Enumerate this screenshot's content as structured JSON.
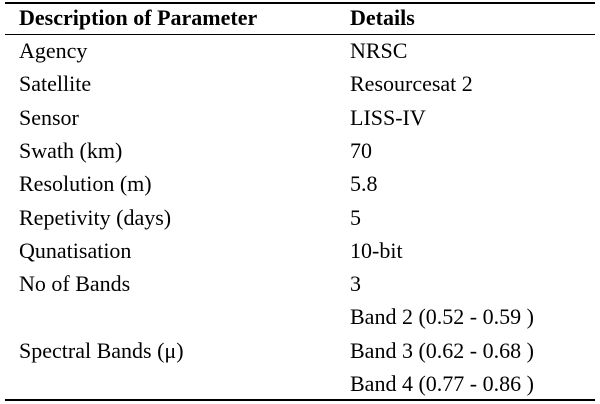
{
  "table": {
    "header": [
      "Description of Parameter",
      "Details"
    ],
    "rows": [
      [
        "Agency",
        "NRSC"
      ],
      [
        "Satellite",
        "Resourcesat 2"
      ],
      [
        "Sensor",
        "LISS-IV"
      ],
      [
        "Swath (km)",
        "70"
      ],
      [
        "Resolution (m)",
        "5.8"
      ],
      [
        "Repetivity (days)",
        "5"
      ],
      [
        "Qunatisation",
        "10-bit"
      ],
      [
        "No of Bands",
        "3"
      ]
    ],
    "spectral": {
      "label": "Spectral Bands (μ)",
      "details": [
        "Band 2 (0.52 - 0.59 )",
        "Band 3 (0.62 - 0.68 )",
        "Band 4 (0.77 - 0.86 )"
      ]
    }
  }
}
